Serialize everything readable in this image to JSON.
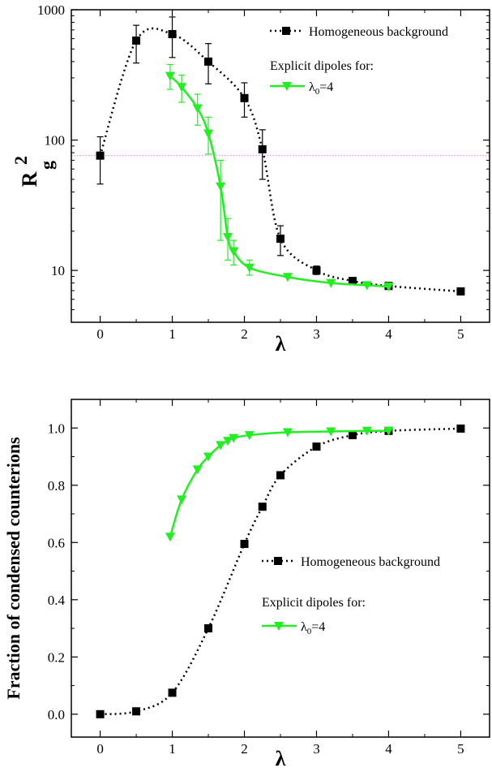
{
  "chart_data": [
    {
      "type": "line",
      "xlabel": "λ",
      "ylabel": "R",
      "ylabel_sub": "g",
      "ylabel_sup": "2",
      "xlim": [
        -0.4,
        5.4
      ],
      "ylim": [
        4,
        1000
      ],
      "yscale": "log",
      "x_ticks": [
        "0",
        "1",
        "2",
        "3",
        "4",
        "5"
      ],
      "y_ticks": [
        "10",
        "100",
        "1000"
      ],
      "reference_line_y": 76,
      "legend": {
        "entries": [
          {
            "label": "Homogeneous background"
          },
          {
            "heading": "Explicit dipoles for:"
          },
          {
            "label_main": "λ",
            "label_sub": "0",
            "label_tail": "=4"
          }
        ],
        "position": "top-right"
      },
      "series": [
        {
          "color": "#000000",
          "marker": "square",
          "line": "dotted",
          "x": [
            0,
            0.5,
            1.0,
            1.5,
            2.0,
            2.25,
            2.5,
            3.0,
            3.5,
            4.0,
            5.0
          ],
          "y": [
            76,
            580,
            650,
            400,
            210,
            85,
            17.5,
            10,
            8.3,
            7.6,
            6.9
          ],
          "err_low": [
            46,
            390,
            430,
            270,
            150,
            50,
            13,
            9.3,
            null,
            null,
            null
          ],
          "err_high": [
            106,
            760,
            880,
            550,
            275,
            120,
            22,
            10.8,
            null,
            null,
            null
          ]
        },
        {
          "color": "#22ee22",
          "marker": "triangle-down",
          "line": "solid",
          "x": [
            0.97,
            1.13,
            1.35,
            1.5,
            1.67,
            1.77,
            1.85,
            2.07,
            2.6,
            3.2,
            3.7,
            4.0
          ],
          "y": [
            310,
            255,
            175,
            112,
            44,
            18,
            14,
            10.5,
            8.9,
            8.0,
            7.7,
            7.5
          ],
          "err_low": [
            245,
            195,
            130,
            78,
            17,
            12,
            11,
            9.2,
            null,
            null,
            null,
            null
          ],
          "err_high": [
            380,
            315,
            225,
            150,
            70,
            25,
            17,
            12,
            null,
            null,
            null,
            null
          ]
        }
      ]
    },
    {
      "type": "line",
      "xlabel": "λ",
      "ylabel": "Fraction of condensed counterions",
      "xlim": [
        -0.4,
        5.4
      ],
      "ylim": [
        -0.08,
        1.1
      ],
      "x_ticks": [
        "0",
        "1",
        "2",
        "3",
        "4",
        "5"
      ],
      "y_ticks": [
        "0.0",
        "0.2",
        "0.4",
        "0.6",
        "0.8",
        "1.0"
      ],
      "legend": {
        "entries": [
          {
            "label": "Homogeneous background"
          },
          {
            "heading": "Explicit dipoles for:"
          },
          {
            "label_main": "λ",
            "label_sub": "0",
            "label_tail": "=4"
          }
        ],
        "position": "bottom-right"
      },
      "series": [
        {
          "color": "#000000",
          "marker": "square",
          "line": "dotted",
          "x": [
            0,
            0.5,
            1.0,
            1.5,
            2.0,
            2.25,
            2.5,
            3.0,
            3.5,
            4.0,
            5.0
          ],
          "y": [
            0.0,
            0.01,
            0.075,
            0.3,
            0.595,
            0.725,
            0.835,
            0.935,
            0.975,
            0.99,
            0.998
          ]
        },
        {
          "color": "#22ee22",
          "marker": "triangle-down",
          "line": "solid",
          "x": [
            0.97,
            1.13,
            1.35,
            1.5,
            1.67,
            1.77,
            1.85,
            2.07,
            2.6,
            3.2,
            3.7,
            4.0
          ],
          "y": [
            0.62,
            0.75,
            0.855,
            0.9,
            0.94,
            0.955,
            0.965,
            0.975,
            0.985,
            0.988,
            0.99,
            0.99
          ]
        }
      ]
    }
  ]
}
